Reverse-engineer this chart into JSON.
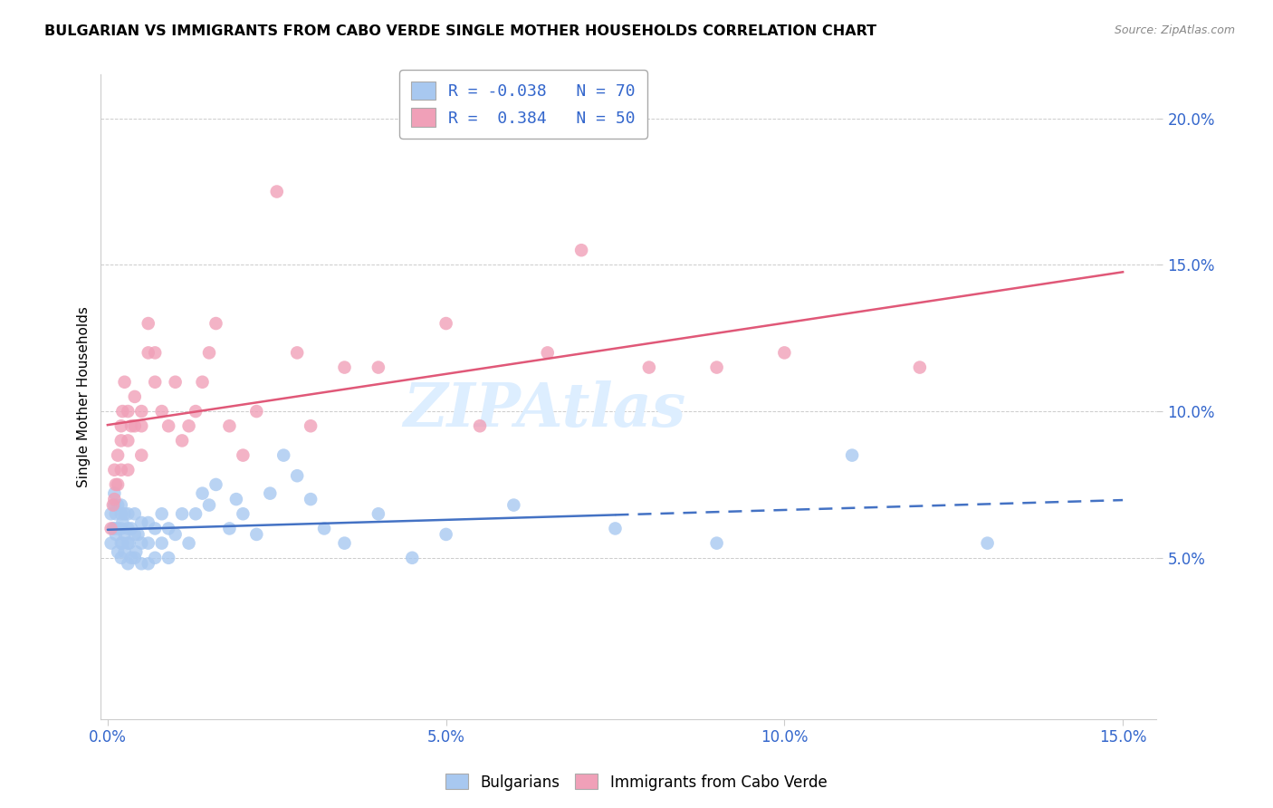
{
  "title": "BULGARIAN VS IMMIGRANTS FROM CABO VERDE SINGLE MOTHER HOUSEHOLDS CORRELATION CHART",
  "source": "Source: ZipAtlas.com",
  "ylabel": "Single Mother Households",
  "xlim": [
    -0.001,
    0.155
  ],
  "ylim": [
    -0.005,
    0.215
  ],
  "xticks": [
    0.0,
    0.05,
    0.1,
    0.15
  ],
  "xtick_labels": [
    "0.0%",
    "5.0%",
    "10.0%",
    "15.0%"
  ],
  "yticks": [
    0.05,
    0.1,
    0.15,
    0.2
  ],
  "ytick_labels": [
    "5.0%",
    "10.0%",
    "15.0%",
    "20.0%"
  ],
  "blue_R": -0.038,
  "blue_N": 70,
  "pink_R": 0.384,
  "pink_N": 50,
  "blue_color": "#A8C8F0",
  "pink_color": "#F0A0B8",
  "blue_line_color": "#4472C4",
  "pink_line_color": "#E05878",
  "bg_color": "#FFFFFF",
  "grid_color": "#CCCCCC",
  "watermark": "ZIPAtlas",
  "blue_line_solid_end": 0.075,
  "blue_x": [
    0.0005,
    0.0005,
    0.0008,
    0.001,
    0.001,
    0.001,
    0.0012,
    0.0012,
    0.0015,
    0.0015,
    0.0015,
    0.002,
    0.002,
    0.002,
    0.002,
    0.002,
    0.0022,
    0.0022,
    0.0025,
    0.0025,
    0.0025,
    0.003,
    0.003,
    0.003,
    0.003,
    0.0032,
    0.0035,
    0.0035,
    0.004,
    0.004,
    0.004,
    0.0042,
    0.0045,
    0.005,
    0.005,
    0.005,
    0.006,
    0.006,
    0.006,
    0.007,
    0.007,
    0.008,
    0.008,
    0.009,
    0.009,
    0.01,
    0.011,
    0.012,
    0.013,
    0.014,
    0.015,
    0.016,
    0.018,
    0.019,
    0.02,
    0.022,
    0.024,
    0.026,
    0.028,
    0.03,
    0.032,
    0.035,
    0.04,
    0.045,
    0.05,
    0.06,
    0.075,
    0.09,
    0.11,
    0.13
  ],
  "blue_y": [
    0.055,
    0.065,
    0.06,
    0.06,
    0.068,
    0.072,
    0.058,
    0.065,
    0.052,
    0.06,
    0.068,
    0.05,
    0.055,
    0.06,
    0.065,
    0.068,
    0.055,
    0.062,
    0.052,
    0.058,
    0.065,
    0.048,
    0.055,
    0.06,
    0.065,
    0.055,
    0.05,
    0.06,
    0.05,
    0.058,
    0.065,
    0.052,
    0.058,
    0.048,
    0.055,
    0.062,
    0.048,
    0.055,
    0.062,
    0.05,
    0.06,
    0.055,
    0.065,
    0.05,
    0.06,
    0.058,
    0.065,
    0.055,
    0.065,
    0.072,
    0.068,
    0.075,
    0.06,
    0.07,
    0.065,
    0.058,
    0.072,
    0.085,
    0.078,
    0.07,
    0.06,
    0.055,
    0.065,
    0.05,
    0.058,
    0.068,
    0.06,
    0.055,
    0.085,
    0.055
  ],
  "pink_x": [
    0.0005,
    0.0008,
    0.001,
    0.001,
    0.0012,
    0.0015,
    0.0015,
    0.002,
    0.002,
    0.002,
    0.0022,
    0.0025,
    0.003,
    0.003,
    0.003,
    0.0035,
    0.004,
    0.004,
    0.005,
    0.005,
    0.005,
    0.006,
    0.006,
    0.007,
    0.007,
    0.008,
    0.009,
    0.01,
    0.011,
    0.012,
    0.013,
    0.014,
    0.015,
    0.016,
    0.018,
    0.02,
    0.022,
    0.025,
    0.028,
    0.03,
    0.035,
    0.04,
    0.05,
    0.055,
    0.065,
    0.07,
    0.08,
    0.09,
    0.1,
    0.12
  ],
  "pink_y": [
    0.06,
    0.068,
    0.07,
    0.08,
    0.075,
    0.075,
    0.085,
    0.08,
    0.09,
    0.095,
    0.1,
    0.11,
    0.08,
    0.09,
    0.1,
    0.095,
    0.095,
    0.105,
    0.085,
    0.095,
    0.1,
    0.12,
    0.13,
    0.11,
    0.12,
    0.1,
    0.095,
    0.11,
    0.09,
    0.095,
    0.1,
    0.11,
    0.12,
    0.13,
    0.095,
    0.085,
    0.1,
    0.175,
    0.12,
    0.095,
    0.115,
    0.115,
    0.13,
    0.095,
    0.12,
    0.155,
    0.115,
    0.115,
    0.12,
    0.115
  ]
}
